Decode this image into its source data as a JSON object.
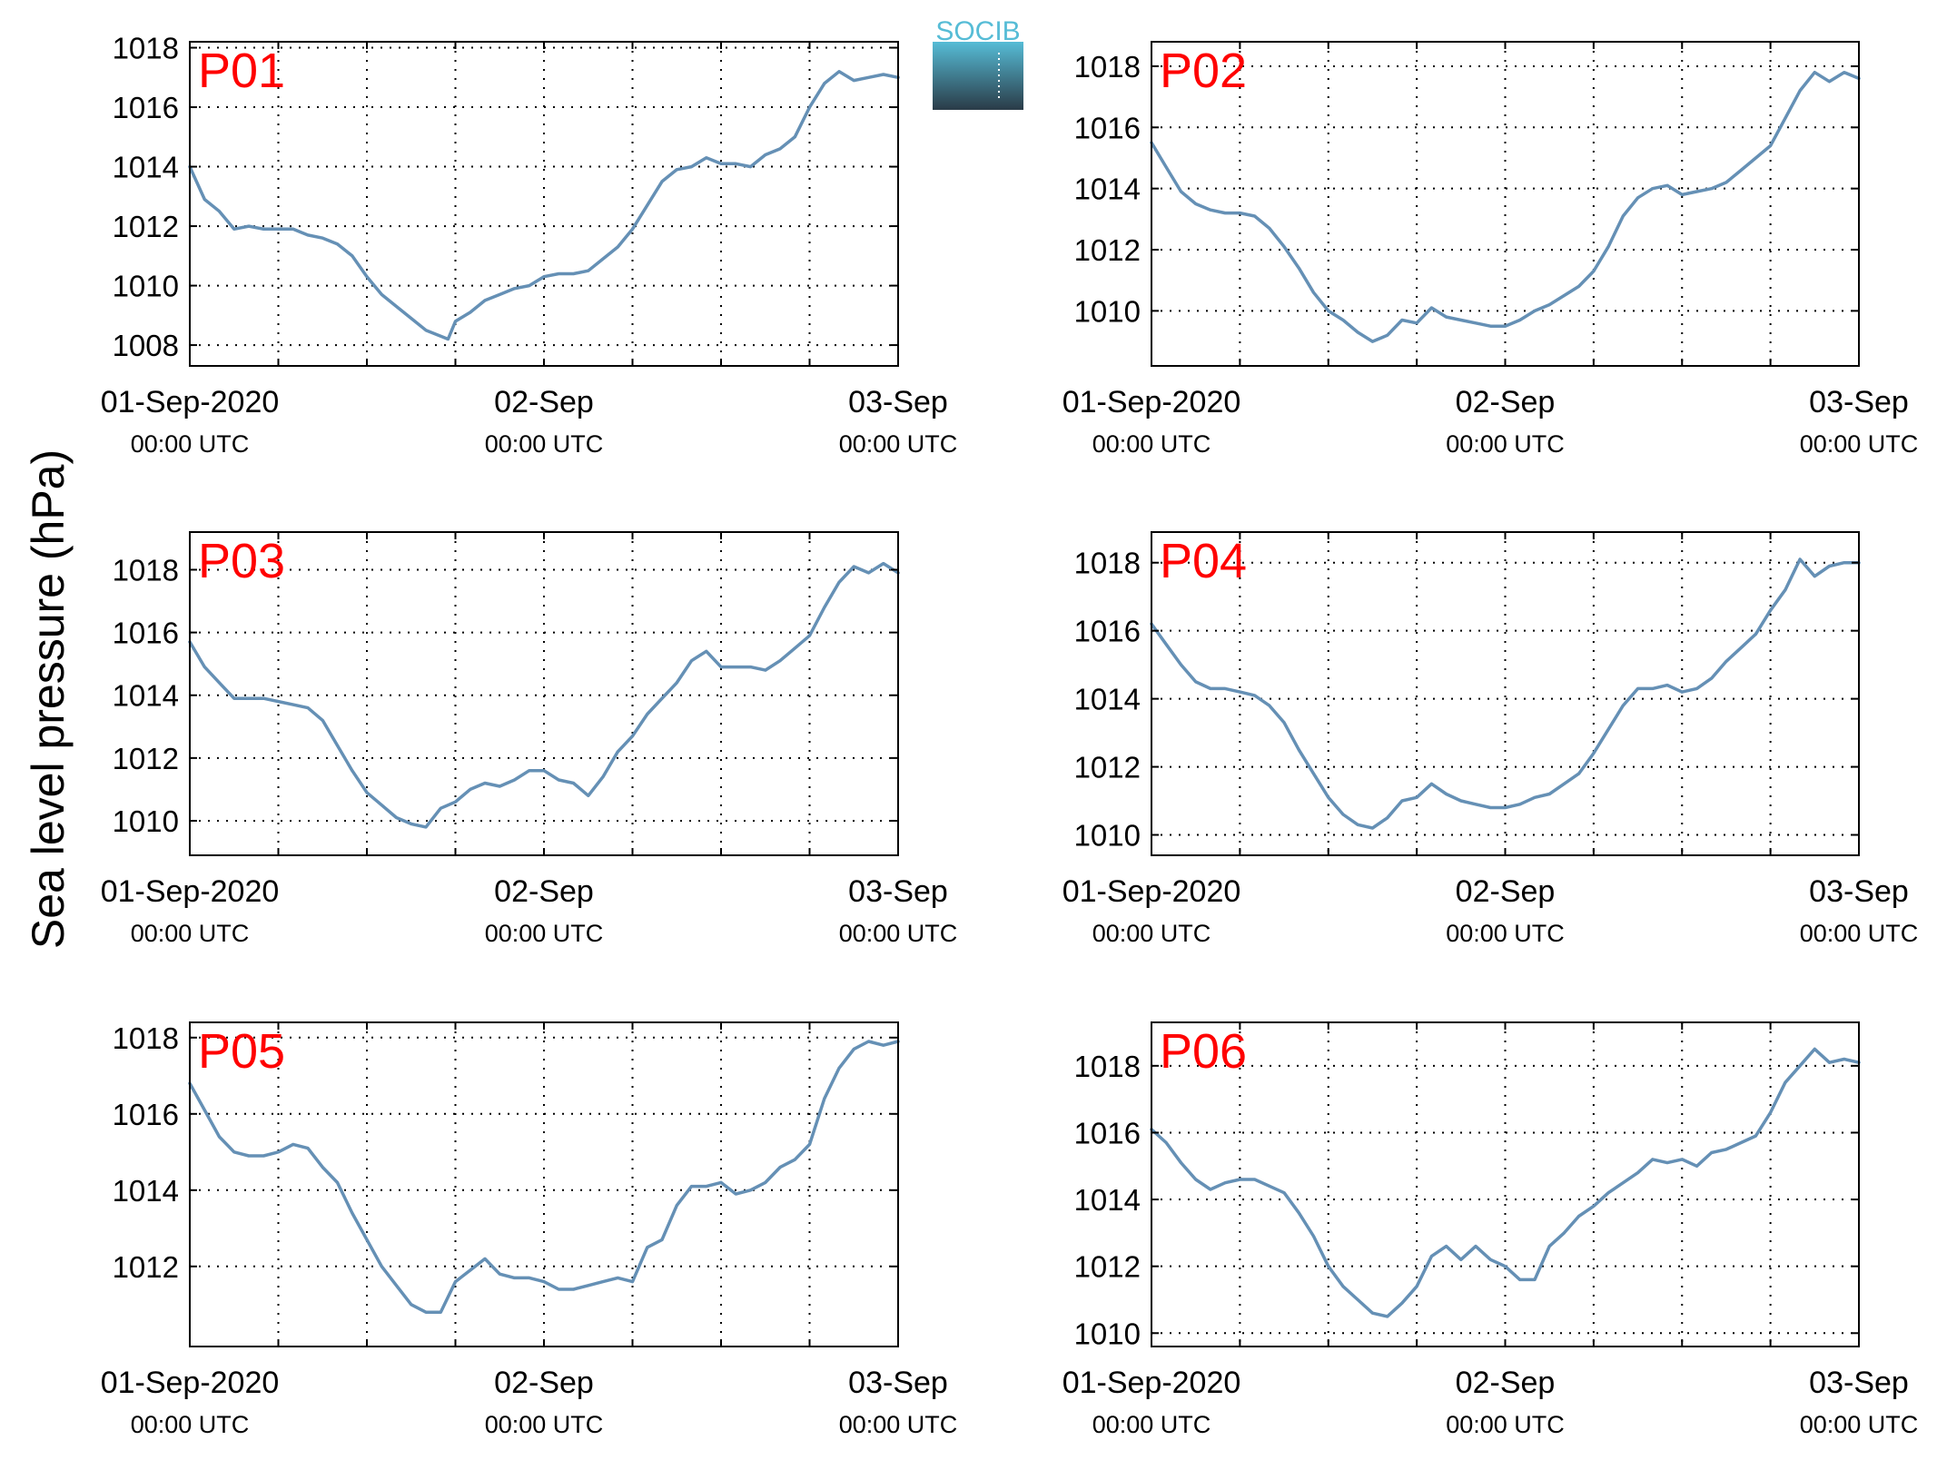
{
  "figure": {
    "ylabel": "Sea level pressure (hPa)",
    "logo_text": "SOCIB"
  },
  "colors": {
    "series": "#6590b5",
    "panel_label": "#ff0000",
    "grid": "#000000",
    "logo_top": "#56bcd6",
    "logo_bottom": "#2a3b47"
  },
  "chart_data": [
    {
      "type": "line",
      "panel_label": "P01",
      "xlim": [
        0,
        48
      ],
      "ylim": [
        1007.3,
        1018.2
      ],
      "yticks": [
        1008,
        1010,
        1012,
        1014,
        1016,
        1018
      ],
      "xticks": [
        0,
        24,
        48
      ],
      "xtick_labels": [
        [
          "01-Sep-2020",
          "00:00 UTC"
        ],
        [
          "02-Sep",
          "00:00 UTC"
        ],
        [
          "03-Sep",
          "00:00 UTC"
        ]
      ],
      "grid": true,
      "x": [
        0,
        1,
        2,
        3,
        4,
        5,
        6,
        7,
        8,
        9,
        10,
        11,
        12,
        13,
        14,
        15,
        16,
        17,
        17.5,
        18,
        19,
        20,
        21,
        22,
        23,
        24,
        25,
        26,
        27,
        28,
        29,
        30,
        31,
        32,
        33,
        34,
        35,
        36,
        37,
        38,
        39,
        40,
        41,
        42,
        43,
        44,
        45,
        46,
        47,
        48
      ],
      "y": [
        1014.0,
        1012.9,
        1012.5,
        1011.9,
        1012.0,
        1011.9,
        1011.9,
        1011.9,
        1011.7,
        1011.6,
        1011.4,
        1011.0,
        1010.3,
        1009.7,
        1009.3,
        1008.9,
        1008.5,
        1008.3,
        1008.2,
        1008.8,
        1009.1,
        1009.5,
        1009.7,
        1009.9,
        1010.0,
        1010.3,
        1010.4,
        1010.4,
        1010.5,
        1010.9,
        1011.3,
        1011.9,
        1012.7,
        1013.5,
        1013.9,
        1014.0,
        1014.3,
        1014.1,
        1014.1,
        1014.0,
        1014.4,
        1014.6,
        1015.0,
        1016.0,
        1016.8,
        1017.2,
        1016.9,
        1017.0,
        1017.1,
        1017.0
      ]
    },
    {
      "type": "line",
      "panel_label": "P02",
      "xlim": [
        0,
        48
      ],
      "ylim": [
        1008.2,
        1018.8
      ],
      "yticks": [
        1010,
        1012,
        1014,
        1016,
        1018
      ],
      "xticks": [
        0,
        24,
        48
      ],
      "xtick_labels": [
        [
          "01-Sep-2020",
          "00:00 UTC"
        ],
        [
          "02-Sep",
          "00:00 UTC"
        ],
        [
          "03-Sep",
          "00:00 UTC"
        ]
      ],
      "grid": true,
      "x": [
        0,
        1,
        2,
        3,
        4,
        5,
        6,
        7,
        8,
        9,
        10,
        11,
        12,
        13,
        14,
        15,
        16,
        17,
        18,
        19,
        20,
        21,
        22,
        23,
        24,
        25,
        26,
        27,
        28,
        29,
        30,
        31,
        32,
        33,
        34,
        35,
        36,
        37,
        38,
        39,
        40,
        41,
        42,
        43,
        44,
        45,
        46,
        47,
        48
      ],
      "y": [
        1015.5,
        1014.7,
        1013.9,
        1013.5,
        1013.3,
        1013.2,
        1013.2,
        1013.1,
        1012.7,
        1012.1,
        1011.4,
        1010.6,
        1010.0,
        1009.7,
        1009.3,
        1009.0,
        1009.2,
        1009.7,
        1009.6,
        1010.1,
        1009.8,
        1009.7,
        1009.6,
        1009.5,
        1009.5,
        1009.7,
        1010.0,
        1010.2,
        1010.5,
        1010.8,
        1011.3,
        1012.1,
        1013.1,
        1013.7,
        1014.0,
        1014.1,
        1013.8,
        1013.9,
        1014.0,
        1014.2,
        1014.6,
        1015.0,
        1015.4,
        1016.3,
        1017.2,
        1017.8,
        1017.5,
        1017.8,
        1017.6
      ]
    },
    {
      "type": "line",
      "panel_label": "P03",
      "xlim": [
        0,
        48
      ],
      "ylim": [
        1008.9,
        1019.2
      ],
      "yticks": [
        1010,
        1012,
        1014,
        1016,
        1018
      ],
      "xticks": [
        0,
        24,
        48
      ],
      "xtick_labels": [
        [
          "01-Sep-2020",
          "00:00 UTC"
        ],
        [
          "02-Sep",
          "00:00 UTC"
        ],
        [
          "03-Sep",
          "00:00 UTC"
        ]
      ],
      "grid": true,
      "x": [
        0,
        1,
        2,
        3,
        4,
        5,
        6,
        7,
        8,
        9,
        10,
        11,
        12,
        13,
        14,
        15,
        16,
        17,
        18,
        19,
        20,
        21,
        22,
        23,
        24,
        25,
        26,
        27,
        28,
        29,
        30,
        31,
        32,
        33,
        34,
        35,
        36,
        37,
        38,
        39,
        40,
        41,
        42,
        43,
        44,
        45,
        46,
        47,
        48
      ],
      "y": [
        1015.7,
        1014.9,
        1014.4,
        1013.9,
        1013.9,
        1013.9,
        1013.8,
        1013.7,
        1013.6,
        1013.2,
        1012.4,
        1011.6,
        1010.9,
        1010.5,
        1010.1,
        1009.9,
        1009.8,
        1010.4,
        1010.6,
        1011.0,
        1011.2,
        1011.1,
        1011.3,
        1011.6,
        1011.6,
        1011.3,
        1011.2,
        1010.8,
        1011.4,
        1012.2,
        1012.7,
        1013.4,
        1013.9,
        1014.4,
        1015.1,
        1015.4,
        1014.9,
        1014.9,
        1014.9,
        1014.8,
        1015.1,
        1015.5,
        1015.9,
        1016.8,
        1017.6,
        1018.1,
        1017.9,
        1018.2,
        1017.9
      ]
    },
    {
      "type": "line",
      "panel_label": "P04",
      "xlim": [
        0,
        48
      ],
      "ylim": [
        1009.4,
        1018.9
      ],
      "yticks": [
        1010,
        1012,
        1014,
        1016,
        1018
      ],
      "xticks": [
        0,
        24,
        48
      ],
      "xtick_labels": [
        [
          "01-Sep-2020",
          "00:00 UTC"
        ],
        [
          "02-Sep",
          "00:00 UTC"
        ],
        [
          "03-Sep",
          "00:00 UTC"
        ]
      ],
      "grid": true,
      "x": [
        0,
        1,
        2,
        3,
        4,
        5,
        6,
        7,
        8,
        9,
        10,
        11,
        12,
        13,
        14,
        15,
        16,
        17,
        18,
        19,
        20,
        21,
        22,
        23,
        24,
        25,
        26,
        27,
        28,
        29,
        30,
        31,
        32,
        33,
        34,
        35,
        36,
        37,
        38,
        39,
        40,
        41,
        42,
        43,
        44,
        45,
        46,
        47,
        48
      ],
      "y": [
        1016.2,
        1015.6,
        1015.0,
        1014.5,
        1014.3,
        1014.3,
        1014.2,
        1014.1,
        1013.8,
        1013.3,
        1012.5,
        1011.8,
        1011.1,
        1010.6,
        1010.3,
        1010.2,
        1010.5,
        1011.0,
        1011.1,
        1011.5,
        1011.2,
        1011.0,
        1010.9,
        1010.8,
        1010.8,
        1010.9,
        1011.1,
        1011.2,
        1011.5,
        1011.8,
        1012.4,
        1013.1,
        1013.8,
        1014.3,
        1014.3,
        1014.4,
        1014.2,
        1014.3,
        1014.6,
        1015.1,
        1015.5,
        1015.9,
        1016.6,
        1017.2,
        1018.1,
        1017.6,
        1017.9,
        1018.0,
        1018.0
      ]
    },
    {
      "type": "line",
      "panel_label": "P05",
      "xlim": [
        0,
        48
      ],
      "ylim": [
        1009.9,
        1018.4
      ],
      "yticks": [
        1012,
        1014,
        1016,
        1018
      ],
      "xticks": [
        0,
        24,
        48
      ],
      "xtick_labels": [
        [
          "01-Sep-2020",
          "00:00 UTC"
        ],
        [
          "02-Sep",
          "00:00 UTC"
        ],
        [
          "03-Sep",
          "00:00 UTC"
        ]
      ],
      "grid": true,
      "x": [
        0,
        1,
        2,
        3,
        4,
        5,
        6,
        7,
        8,
        9,
        10,
        11,
        12,
        13,
        14,
        15,
        16,
        17,
        18,
        19,
        20,
        21,
        22,
        23,
        24,
        25,
        26,
        27,
        28,
        29,
        30,
        31,
        32,
        33,
        34,
        35,
        36,
        37,
        38,
        39,
        40,
        41,
        42,
        43,
        44,
        45,
        46,
        47,
        48
      ],
      "y": [
        1016.8,
        1016.1,
        1015.4,
        1015.0,
        1014.9,
        1014.9,
        1015.0,
        1015.2,
        1015.1,
        1014.6,
        1014.2,
        1013.4,
        1012.7,
        1012.0,
        1011.5,
        1011.0,
        1010.8,
        1010.8,
        1011.6,
        1011.9,
        1012.2,
        1011.8,
        1011.7,
        1011.7,
        1011.6,
        1011.4,
        1011.4,
        1011.5,
        1011.6,
        1011.7,
        1011.6,
        1012.5,
        1012.7,
        1013.6,
        1014.1,
        1014.1,
        1014.2,
        1013.9,
        1014.0,
        1014.2,
        1014.6,
        1014.8,
        1015.2,
        1016.4,
        1017.2,
        1017.7,
        1017.9,
        1017.8,
        1017.9
      ]
    },
    {
      "type": "line",
      "panel_label": "P06",
      "xlim": [
        0,
        48
      ],
      "ylim": [
        1009.6,
        1019.3
      ],
      "yticks": [
        1010,
        1012,
        1014,
        1016,
        1018
      ],
      "xticks": [
        0,
        24,
        48
      ],
      "xtick_labels": [
        [
          "01-Sep-2020",
          "00:00 UTC"
        ],
        [
          "02-Sep",
          "00:00 UTC"
        ],
        [
          "03-Sep",
          "00:00 UTC"
        ]
      ],
      "grid": true,
      "x": [
        0,
        1,
        2,
        3,
        4,
        5,
        6,
        7,
        8,
        9,
        10,
        11,
        12,
        13,
        14,
        15,
        16,
        17,
        18,
        19,
        20,
        21,
        22,
        23,
        24,
        25,
        26,
        27,
        28,
        29,
        30,
        31,
        32,
        33,
        34,
        35,
        36,
        37,
        38,
        39,
        40,
        41,
        42,
        43,
        44,
        45,
        46,
        47,
        48
      ],
      "y": [
        1016.1,
        1015.7,
        1015.1,
        1014.6,
        1014.3,
        1014.5,
        1014.6,
        1014.6,
        1014.4,
        1014.2,
        1013.6,
        1012.9,
        1012.0,
        1011.4,
        1011.0,
        1010.6,
        1010.5,
        1010.9,
        1011.4,
        1012.3,
        1012.6,
        1012.2,
        1012.6,
        1012.2,
        1012.0,
        1011.6,
        1011.6,
        1012.6,
        1013.0,
        1013.5,
        1013.8,
        1014.2,
        1014.5,
        1014.8,
        1015.2,
        1015.1,
        1015.2,
        1015.0,
        1015.4,
        1015.5,
        1015.7,
        1015.9,
        1016.6,
        1017.5,
        1018.0,
        1018.5,
        1018.1,
        1018.2,
        1018.1
      ]
    }
  ]
}
